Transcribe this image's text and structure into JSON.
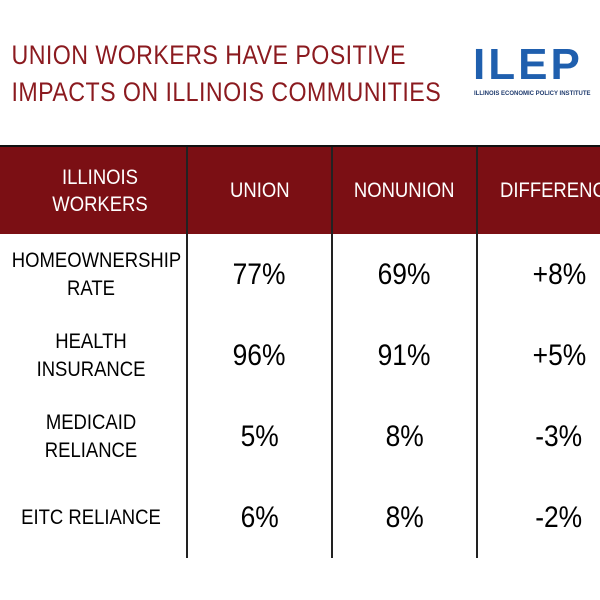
{
  "header": {
    "title_line1": "UNION WORKERS HAVE POSITIVE",
    "title_line2": "IMPACTS ON ILLINOIS COMMUNITIES",
    "logo": "ILEP",
    "logo_subtitle": "ILLINOIS ECONOMIC POLICY INSTITUTE"
  },
  "table": {
    "columns": [
      "ILLINOIS WORKERS",
      "UNION",
      "NONUNION",
      "DIFFERENCE"
    ],
    "rows": [
      [
        "HOMEOWNERSHIP RATE",
        "77%",
        "69%",
        "+8%"
      ],
      [
        "HEALTH INSURANCE",
        "96%",
        "91%",
        "+5%"
      ],
      [
        "MEDICAID RELIANCE",
        "5%",
        "8%",
        "-3%"
      ],
      [
        "EITC RELIANCE",
        "6%",
        "8%",
        "-2%"
      ]
    ]
  }
}
